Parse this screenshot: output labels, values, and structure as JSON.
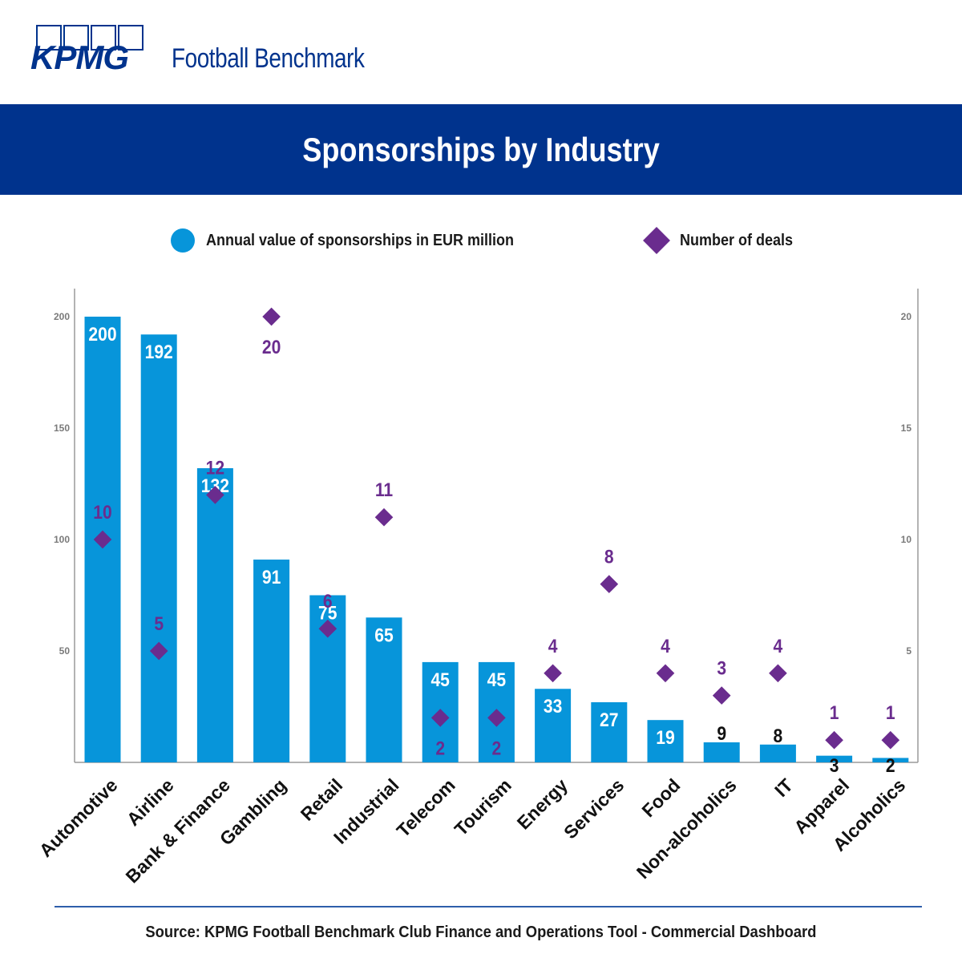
{
  "brand": {
    "logo_text": "KPMG",
    "subtitle": "Football Benchmark"
  },
  "title": "Sponsorships by Industry",
  "legend": {
    "bars_label": "Annual value of sponsorships in EUR million",
    "diamonds_label": "Number of deals"
  },
  "colors": {
    "brand_blue": "#00338D",
    "bar_blue": "#0795DA",
    "diamond_purple": "#6A2C8E",
    "axis_gray": "#9a9a9a"
  },
  "chart_data": {
    "type": "bar",
    "categories": [
      "Automotive",
      "Airline",
      "Bank & Finance",
      "Gambling",
      "Retail",
      "Industrial",
      "Telecom",
      "Tourism",
      "Energy",
      "Services",
      "Food",
      "Non-alcoholics",
      "IT",
      "Apparel",
      "Alcoholics"
    ],
    "series": [
      {
        "name": "Annual value of sponsorships in EUR million",
        "type": "bar",
        "axis": "left",
        "values": [
          200,
          192,
          132,
          91,
          75,
          65,
          45,
          45,
          33,
          27,
          19,
          9,
          8,
          3,
          2
        ]
      },
      {
        "name": "Number of deals",
        "type": "scatter",
        "marker": "diamond",
        "axis": "right",
        "values": [
          10,
          5,
          12,
          20,
          6,
          11,
          2,
          2,
          4,
          8,
          4,
          3,
          4,
          1,
          1
        ]
      }
    ],
    "y_left": {
      "ylim": [
        0,
        200
      ],
      "ticks": [
        50,
        100,
        150,
        200
      ]
    },
    "y_right": {
      "ylim": [
        0,
        20
      ],
      "ticks": [
        5,
        10,
        15,
        20
      ]
    },
    "grid": false,
    "legend_position": "top"
  },
  "source": "Source: KPMG Football Benchmark Club Finance and Operations Tool - Commercial Dashboard"
}
